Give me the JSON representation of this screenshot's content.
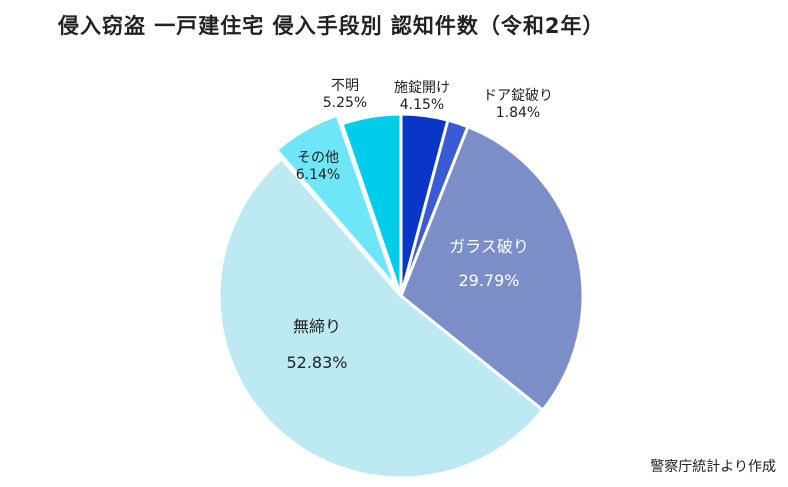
{
  "chart_data": {
    "type": "pie",
    "title": "侵入窃盗 一戸建住宅 侵入手段別 認知件数（令和2年）",
    "source": "警察庁統計より作成",
    "unit": "%",
    "start_angle": "12 o'clock",
    "direction": "clockwise",
    "slices": [
      {
        "label": "施錠開け",
        "value": 4.15,
        "value_label": "4.15%",
        "color": "#0a36c8",
        "exploded": false
      },
      {
        "label": "ドア錠破り",
        "value": 1.84,
        "value_label": "1.84%",
        "color": "#3a5ad6",
        "exploded": false
      },
      {
        "label": "ガラス破り",
        "value": 29.79,
        "value_label": "29.79%",
        "color": "#7b8ec8",
        "exploded": false
      },
      {
        "label": "無締り",
        "value": 52.83,
        "value_label": "52.83%",
        "color": "#bdeaf2",
        "exploded": false
      },
      {
        "label": "その他",
        "value": 6.14,
        "value_label": "6.14%",
        "color": "#6ee6f7",
        "exploded": true
      },
      {
        "label": "不明",
        "value": 5.25,
        "value_label": "5.25%",
        "color": "#00cdea",
        "exploded": false
      }
    ]
  }
}
